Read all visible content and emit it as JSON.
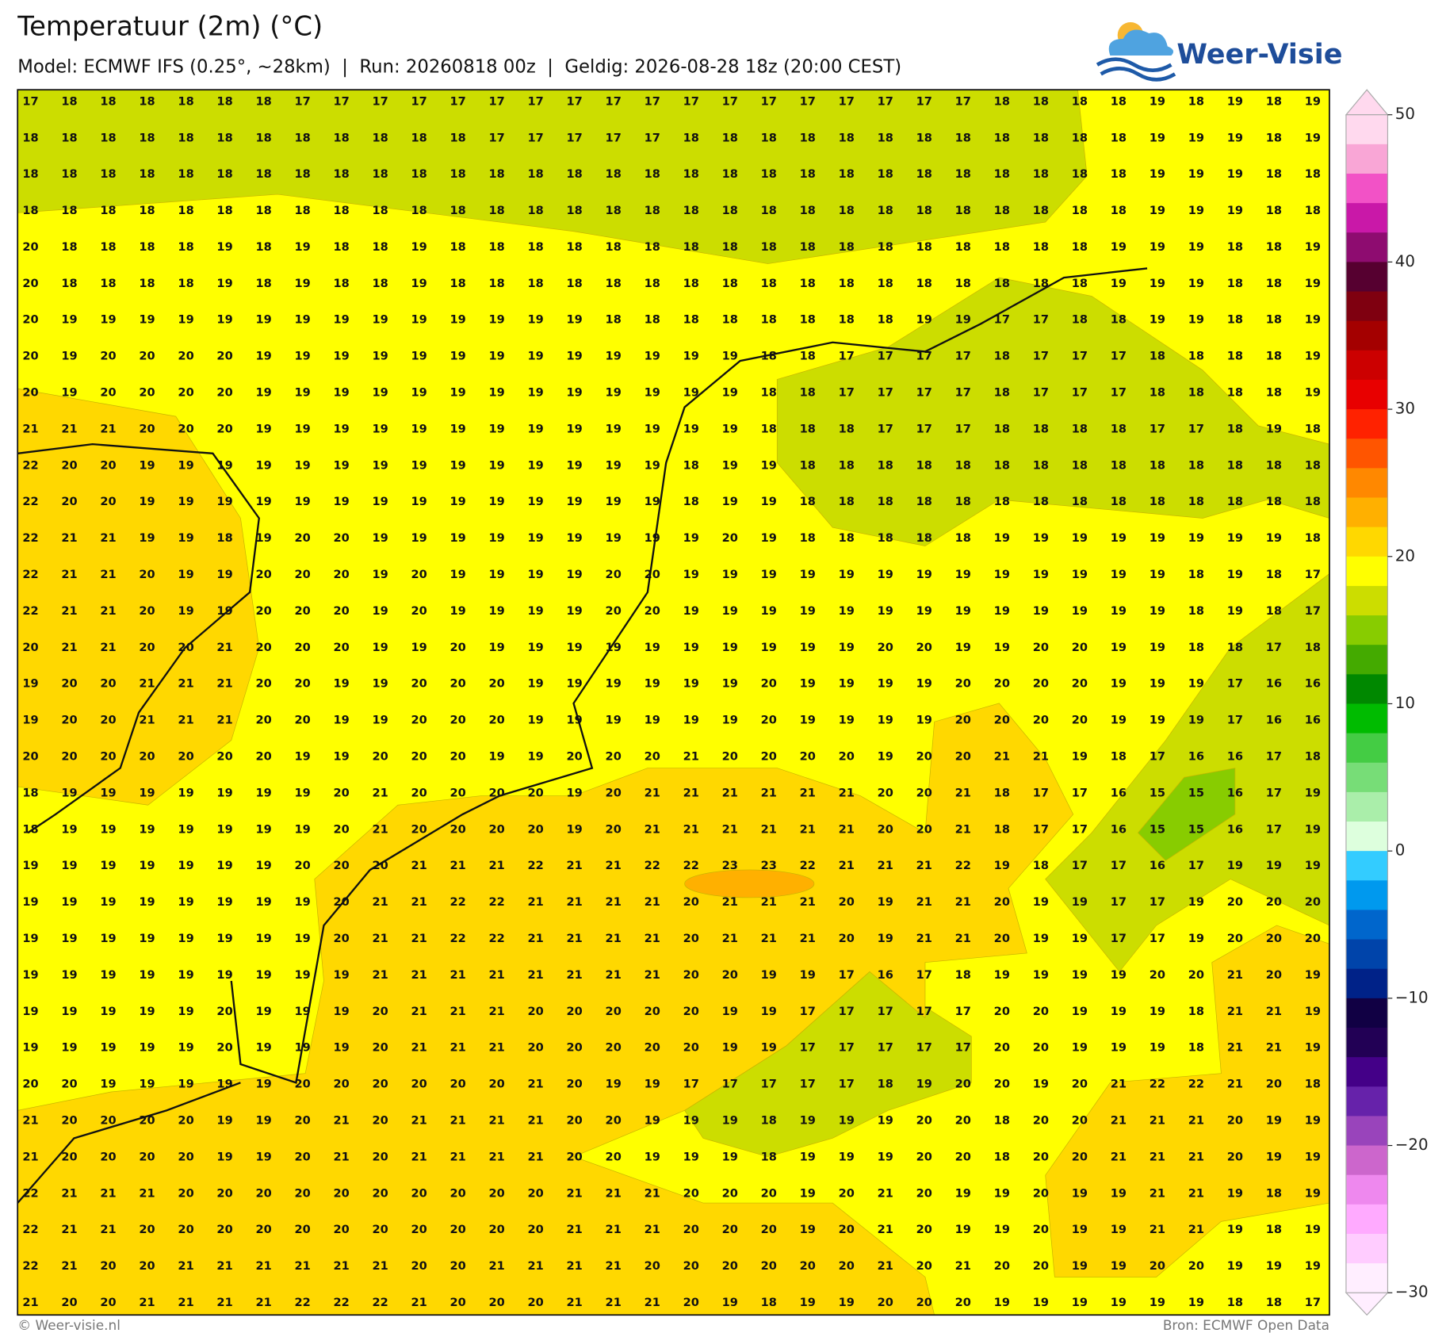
{
  "header": {
    "title": "Temperatuur (2m) (°C)",
    "subtitle": "Model: ECMWF IFS (0.25°, ~28km)  |  Run: 20260818 00z  |  Geldig: 2026-08-28 18z (20:00 CEST)",
    "logo": "Weer-Visie"
  },
  "grid": {
    "rows": [
      [
        17,
        18,
        18,
        18,
        18,
        18,
        18,
        17,
        17,
        17,
        17,
        17,
        17,
        17,
        17,
        17,
        17,
        17,
        17,
        17,
        17,
        17,
        17,
        17,
        17,
        18,
        18,
        18,
        18,
        19,
        18,
        19,
        18,
        19
      ],
      [
        18,
        18,
        18,
        18,
        18,
        18,
        18,
        18,
        18,
        18,
        18,
        18,
        17,
        17,
        17,
        17,
        17,
        18,
        18,
        18,
        18,
        18,
        18,
        18,
        18,
        18,
        18,
        18,
        18,
        19,
        19,
        19,
        18,
        19
      ],
      [
        18,
        18,
        18,
        18,
        18,
        18,
        18,
        18,
        18,
        18,
        18,
        18,
        18,
        18,
        18,
        18,
        18,
        18,
        18,
        18,
        18,
        18,
        18,
        18,
        18,
        18,
        18,
        18,
        18,
        19,
        19,
        19,
        18,
        18
      ],
      [
        18,
        18,
        18,
        18,
        18,
        18,
        18,
        18,
        18,
        18,
        18,
        18,
        18,
        18,
        18,
        18,
        18,
        18,
        18,
        18,
        18,
        18,
        18,
        18,
        18,
        18,
        18,
        18,
        18,
        19,
        19,
        19,
        18,
        18
      ],
      [
        20,
        18,
        18,
        18,
        18,
        19,
        18,
        19,
        18,
        18,
        19,
        18,
        18,
        18,
        18,
        18,
        18,
        18,
        18,
        18,
        18,
        18,
        18,
        18,
        18,
        18,
        18,
        18,
        19,
        19,
        19,
        18,
        18,
        19
      ],
      [
        20,
        18,
        18,
        18,
        18,
        19,
        18,
        19,
        18,
        18,
        19,
        18,
        18,
        18,
        18,
        18,
        18,
        18,
        18,
        18,
        18,
        18,
        18,
        18,
        18,
        18,
        18,
        18,
        19,
        19,
        19,
        18,
        18,
        19
      ],
      [
        20,
        19,
        19,
        19,
        19,
        19,
        19,
        19,
        19,
        19,
        19,
        19,
        19,
        19,
        19,
        18,
        18,
        18,
        18,
        18,
        18,
        18,
        18,
        19,
        19,
        17,
        17,
        18,
        18,
        19,
        19,
        18,
        18,
        19
      ],
      [
        20,
        19,
        20,
        20,
        20,
        20,
        19,
        19,
        19,
        19,
        19,
        19,
        19,
        19,
        19,
        19,
        19,
        19,
        19,
        18,
        18,
        17,
        17,
        17,
        17,
        18,
        17,
        17,
        17,
        18,
        18,
        18,
        18,
        19
      ],
      [
        20,
        19,
        20,
        20,
        20,
        20,
        19,
        19,
        19,
        19,
        19,
        19,
        19,
        19,
        19,
        19,
        19,
        19,
        19,
        18,
        18,
        17,
        17,
        17,
        17,
        18,
        17,
        17,
        17,
        18,
        18,
        18,
        18,
        19
      ],
      [
        21,
        21,
        21,
        20,
        20,
        20,
        19,
        19,
        19,
        19,
        19,
        19,
        19,
        19,
        19,
        19,
        19,
        19,
        19,
        18,
        18,
        18,
        17,
        17,
        17,
        18,
        18,
        18,
        18,
        17,
        17,
        18,
        19,
        18
      ],
      [
        22,
        20,
        20,
        19,
        19,
        19,
        19,
        19,
        19,
        19,
        19,
        19,
        19,
        19,
        19,
        19,
        19,
        18,
        19,
        19,
        18,
        18,
        18,
        18,
        18,
        18,
        18,
        18,
        18,
        18,
        18,
        18,
        18,
        18
      ],
      [
        22,
        20,
        20,
        19,
        19,
        19,
        19,
        19,
        19,
        19,
        19,
        19,
        19,
        19,
        19,
        19,
        19,
        18,
        19,
        19,
        18,
        18,
        18,
        18,
        18,
        18,
        18,
        18,
        18,
        18,
        18,
        18,
        18,
        18
      ],
      [
        22,
        21,
        21,
        19,
        19,
        18,
        19,
        20,
        20,
        19,
        19,
        19,
        19,
        19,
        19,
        19,
        19,
        19,
        20,
        19,
        18,
        18,
        18,
        18,
        18,
        19,
        19,
        19,
        19,
        19,
        19,
        19,
        19,
        18
      ],
      [
        22,
        21,
        21,
        20,
        19,
        19,
        20,
        20,
        20,
        19,
        20,
        19,
        19,
        19,
        19,
        20,
        20,
        19,
        19,
        19,
        19,
        19,
        19,
        19,
        19,
        19,
        19,
        19,
        19,
        19,
        18,
        19,
        18,
        17
      ],
      [
        22,
        21,
        21,
        20,
        19,
        19,
        20,
        20,
        20,
        19,
        20,
        19,
        19,
        19,
        19,
        20,
        20,
        19,
        19,
        19,
        19,
        19,
        19,
        19,
        19,
        19,
        19,
        19,
        19,
        19,
        18,
        19,
        18,
        17
      ],
      [
        20,
        21,
        21,
        20,
        20,
        21,
        20,
        20,
        20,
        19,
        19,
        20,
        19,
        19,
        19,
        19,
        19,
        19,
        19,
        19,
        19,
        19,
        20,
        20,
        19,
        19,
        20,
        20,
        19,
        19,
        18,
        18,
        17,
        18
      ],
      [
        19,
        20,
        20,
        21,
        21,
        21,
        20,
        20,
        19,
        19,
        20,
        20,
        20,
        19,
        19,
        19,
        19,
        19,
        19,
        20,
        19,
        19,
        19,
        19,
        20,
        20,
        20,
        20,
        19,
        19,
        19,
        17,
        16,
        16
      ],
      [
        19,
        20,
        20,
        21,
        21,
        21,
        20,
        20,
        19,
        19,
        20,
        20,
        20,
        19,
        19,
        19,
        19,
        19,
        19,
        20,
        19,
        19,
        19,
        19,
        20,
        20,
        20,
        20,
        19,
        19,
        19,
        17,
        16,
        16
      ],
      [
        20,
        20,
        20,
        20,
        20,
        20,
        20,
        19,
        19,
        20,
        20,
        20,
        19,
        19,
        20,
        20,
        20,
        21,
        20,
        20,
        20,
        20,
        19,
        20,
        20,
        21,
        21,
        19,
        18,
        17,
        16,
        16,
        17,
        18
      ],
      [
        18,
        19,
        19,
        19,
        19,
        19,
        19,
        19,
        20,
        21,
        20,
        20,
        20,
        20,
        19,
        20,
        21,
        21,
        21,
        21,
        21,
        21,
        20,
        20,
        21,
        18,
        17,
        17,
        16,
        15,
        15,
        16,
        17,
        19
      ],
      [
        18,
        19,
        19,
        19,
        19,
        19,
        19,
        19,
        20,
        21,
        20,
        20,
        20,
        20,
        19,
        20,
        21,
        21,
        21,
        21,
        21,
        21,
        20,
        20,
        21,
        18,
        17,
        17,
        16,
        15,
        15,
        16,
        17,
        19
      ],
      [
        19,
        19,
        19,
        19,
        19,
        19,
        19,
        20,
        20,
        20,
        21,
        21,
        21,
        22,
        21,
        21,
        22,
        22,
        23,
        23,
        22,
        21,
        21,
        21,
        22,
        19,
        18,
        17,
        17,
        16,
        17,
        19,
        19,
        19
      ],
      [
        19,
        19,
        19,
        19,
        19,
        19,
        19,
        19,
        20,
        21,
        21,
        22,
        22,
        21,
        21,
        21,
        21,
        20,
        21,
        21,
        21,
        20,
        19,
        21,
        21,
        20,
        19,
        19,
        17,
        17,
        19,
        20,
        20,
        20
      ],
      [
        19,
        19,
        19,
        19,
        19,
        19,
        19,
        19,
        20,
        21,
        21,
        22,
        22,
        21,
        21,
        21,
        21,
        20,
        21,
        21,
        21,
        20,
        19,
        21,
        21,
        20,
        19,
        19,
        17,
        17,
        19,
        20,
        20,
        20
      ],
      [
        19,
        19,
        19,
        19,
        19,
        19,
        19,
        19,
        19,
        21,
        21,
        21,
        21,
        21,
        21,
        21,
        21,
        20,
        20,
        19,
        19,
        17,
        16,
        17,
        18,
        19,
        19,
        19,
        19,
        20,
        20,
        21,
        20,
        19
      ],
      [
        19,
        19,
        19,
        19,
        19,
        20,
        19,
        19,
        19,
        20,
        21,
        21,
        21,
        20,
        20,
        20,
        20,
        20,
        19,
        19,
        17,
        17,
        17,
        17,
        17,
        20,
        20,
        19,
        19,
        19,
        18,
        21,
        21,
        19
      ],
      [
        19,
        19,
        19,
        19,
        19,
        20,
        19,
        19,
        19,
        20,
        21,
        21,
        21,
        20,
        20,
        20,
        20,
        20,
        19,
        19,
        17,
        17,
        17,
        17,
        17,
        20,
        20,
        19,
        19,
        19,
        18,
        21,
        21,
        19
      ],
      [
        20,
        20,
        19,
        19,
        19,
        19,
        19,
        20,
        20,
        20,
        20,
        20,
        20,
        21,
        20,
        19,
        19,
        17,
        17,
        17,
        17,
        17,
        18,
        19,
        20,
        20,
        19,
        20,
        21,
        22,
        22,
        21,
        20,
        18
      ],
      [
        21,
        20,
        20,
        20,
        20,
        19,
        19,
        20,
        21,
        20,
        21,
        21,
        21,
        21,
        20,
        20,
        19,
        19,
        19,
        18,
        19,
        19,
        19,
        20,
        20,
        18,
        20,
        20,
        21,
        21,
        21,
        20,
        19,
        19
      ],
      [
        21,
        20,
        20,
        20,
        20,
        19,
        19,
        20,
        21,
        20,
        21,
        21,
        21,
        21,
        20,
        20,
        19,
        19,
        19,
        18,
        19,
        19,
        19,
        20,
        20,
        18,
        20,
        20,
        21,
        21,
        21,
        20,
        19,
        19
      ],
      [
        22,
        21,
        21,
        21,
        20,
        20,
        20,
        20,
        20,
        20,
        20,
        20,
        20,
        20,
        21,
        21,
        21,
        20,
        20,
        20,
        19,
        20,
        21,
        20,
        19,
        19,
        20,
        19,
        19,
        21,
        21,
        19,
        18,
        19
      ],
      [
        22,
        21,
        21,
        20,
        20,
        20,
        20,
        20,
        20,
        20,
        20,
        20,
        20,
        20,
        21,
        21,
        21,
        20,
        20,
        20,
        19,
        20,
        21,
        20,
        19,
        19,
        20,
        19,
        19,
        21,
        21,
        19,
        18,
        19
      ],
      [
        22,
        21,
        20,
        20,
        21,
        21,
        21,
        21,
        21,
        21,
        20,
        20,
        21,
        21,
        21,
        21,
        20,
        20,
        20,
        20,
        20,
        20,
        21,
        20,
        21,
        20,
        20,
        19,
        19,
        20,
        20,
        19,
        19,
        19
      ],
      [
        21,
        20,
        20,
        21,
        21,
        21,
        21,
        22,
        22,
        22,
        21,
        20,
        20,
        20,
        21,
        21,
        21,
        20,
        19,
        18,
        19,
        19,
        20,
        20,
        20,
        19,
        19,
        19,
        19,
        19,
        19,
        18,
        18,
        17
      ]
    ]
  },
  "colorbar": {
    "lim": [
      -30,
      50
    ],
    "ticks": [
      50,
      40,
      30,
      20,
      10,
      0,
      {
        "value": -10,
        "label": "−10"
      },
      {
        "value": -20,
        "label": "−20"
      },
      {
        "value": -30,
        "label": "−30"
      }
    ],
    "colors": [
      "#ffd9ee",
      "#f9a6d6",
      "#f252c6",
      "#c918a8",
      "#8e0c70",
      "#560030",
      "#7f0010",
      "#a40000",
      "#cc0000",
      "#e80000",
      "#ff2200",
      "#ff5500",
      "#ff8800",
      "#ffb000",
      "#ffd800",
      "#ffff00",
      "#ccdd00",
      "#88cc00",
      "#44aa00",
      "#008800",
      "#00bb00",
      "#44cc44",
      "#77dd77",
      "#aaeeaa",
      "#ddffdd",
      "#33ccff",
      "#0099ee",
      "#0066cc",
      "#0044aa",
      "#002288",
      "#110044",
      "#220055",
      "#440088",
      "#6622aa",
      "#9944bb",
      "#cc66cc",
      "#ee88ee",
      "#ffaaff",
      "#ffccff",
      "#ffeeff"
    ]
  },
  "footer": {
    "left": "© Weer-visie.nl",
    "right": "Bron: ECMWF Open Data"
  }
}
